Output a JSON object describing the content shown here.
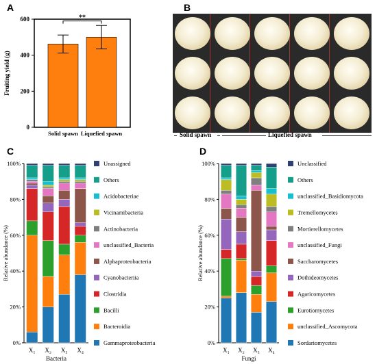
{
  "panels": {
    "a": "A",
    "b": "B",
    "c": "C",
    "d": "D"
  },
  "photo": {
    "rows": 3,
    "cols": 5,
    "solid_label": "Solid spawn",
    "liquid_label": "Liquefied spawn"
  },
  "colors": {
    "orange": "#ff7f0e",
    "series": [
      "#1f77b4",
      "#ff7f0e",
      "#2ca02c",
      "#d62728",
      "#9467bd",
      "#8c564b",
      "#e377c2",
      "#7f7f7f",
      "#bcbd22",
      "#17becf",
      "#159e8a",
      "#2e4172"
    ]
  },
  "chart_data": [
    {
      "type": "bar",
      "panel": "A",
      "categories": [
        "Solid spawn",
        "Liquefied spawn"
      ],
      "values": [
        462,
        500
      ],
      "errors": [
        50,
        65
      ],
      "ylabel": "Fruiting yield (g)",
      "ylim": [
        0,
        600
      ],
      "yticks": [
        "0",
        "200",
        "400",
        "600"
      ],
      "significance": "**",
      "color": "#ff7f0e"
    },
    {
      "type": "bar",
      "stacked": true,
      "panel": "C",
      "xlabel": "Bacteria",
      "ylabel": "Relative abundance (%)",
      "yticks": [
        "0%",
        "20%",
        "40%",
        "60%",
        "80%",
        "100%"
      ],
      "categories": [
        "X₁",
        "X₂",
        "X₃",
        "X₄"
      ],
      "series": [
        {
          "name": "Gammaproteobacteria",
          "color": "#1f77b4",
          "values": [
            6,
            20,
            27,
            38
          ]
        },
        {
          "name": "Bacteroidia",
          "color": "#ff7f0e",
          "values": [
            54,
            17,
            22,
            18
          ]
        },
        {
          "name": "Bacilli",
          "color": "#2ca02c",
          "values": [
            8,
            20,
            6,
            4
          ]
        },
        {
          "name": "Clostridia",
          "color": "#d62728",
          "values": [
            18,
            16,
            21,
            5
          ]
        },
        {
          "name": "Cyanobacteriia",
          "color": "#9467bd",
          "values": [
            2,
            5,
            4,
            2
          ]
        },
        {
          "name": "Alphaproteobacteria",
          "color": "#8c564b",
          "values": [
            1,
            4,
            5,
            19
          ]
        },
        {
          "name": "unclassified_Bacteria",
          "color": "#e377c2",
          "values": [
            1,
            4,
            4,
            3
          ]
        },
        {
          "name": "Actinobacteria",
          "color": "#7f7f7f",
          "values": [
            1,
            1,
            1,
            1
          ]
        },
        {
          "name": "Vicinamibacteria",
          "color": "#bcbd22",
          "values": [
            0,
            1,
            1,
            1
          ]
        },
        {
          "name": "Acidobacteriae",
          "color": "#17becf",
          "values": [
            1,
            2,
            1,
            1
          ]
        },
        {
          "name": "Others",
          "color": "#159e8a",
          "values": [
            7,
            9,
            7,
            7
          ]
        },
        {
          "name": "Unassigned",
          "color": "#2e4172",
          "values": [
            1,
            1,
            1,
            1
          ]
        }
      ]
    },
    {
      "type": "bar",
      "stacked": true,
      "panel": "D",
      "xlabel": "Fungi",
      "ylabel": "Relative abundance (%)",
      "yticks": [
        "0%",
        "20%",
        "40%",
        "60%",
        "80%",
        "100%"
      ],
      "categories": [
        "X₁",
        "X₂",
        "X₃",
        "X₄"
      ],
      "series": [
        {
          "name": "Sordariomycetes",
          "color": "#1f77b4",
          "values": [
            25,
            28,
            17,
            23
          ]
        },
        {
          "name": "unclassified_Ascomycota",
          "color": "#ff7f0e",
          "values": [
            1,
            18,
            10,
            16
          ]
        },
        {
          "name": "Eurotiomycetes",
          "color": "#2ca02c",
          "values": [
            21,
            1,
            5,
            4
          ]
        },
        {
          "name": "Agaricomycetes",
          "color": "#d62728",
          "values": [
            5,
            8,
            5,
            14
          ]
        },
        {
          "name": "Dothideomycetes",
          "color": "#9467bd",
          "values": [
            17,
            7,
            3,
            6
          ]
        },
        {
          "name": "Saccharomycetes",
          "color": "#8c564b",
          "values": [
            6,
            8,
            45,
            2
          ]
        },
        {
          "name": "unclassified_Fungi",
          "color": "#e377c2",
          "values": [
            8,
            5,
            3,
            8
          ]
        },
        {
          "name": "Mortierellomycetes",
          "color": "#7f7f7f",
          "values": [
            2,
            2,
            4,
            3
          ]
        },
        {
          "name": "Tremellomycetes",
          "color": "#bcbd22",
          "values": [
            6,
            3,
            3,
            7
          ]
        },
        {
          "name": "unclassified_Basidiomycota",
          "color": "#17becf",
          "values": [
            1,
            2,
            1,
            3
          ]
        },
        {
          "name": "Others",
          "color": "#159e8a",
          "values": [
            7,
            17,
            3,
            12
          ]
        },
        {
          "name": "Unclassified",
          "color": "#2e4172",
          "values": [
            1,
            1,
            1,
            2
          ]
        }
      ]
    }
  ]
}
